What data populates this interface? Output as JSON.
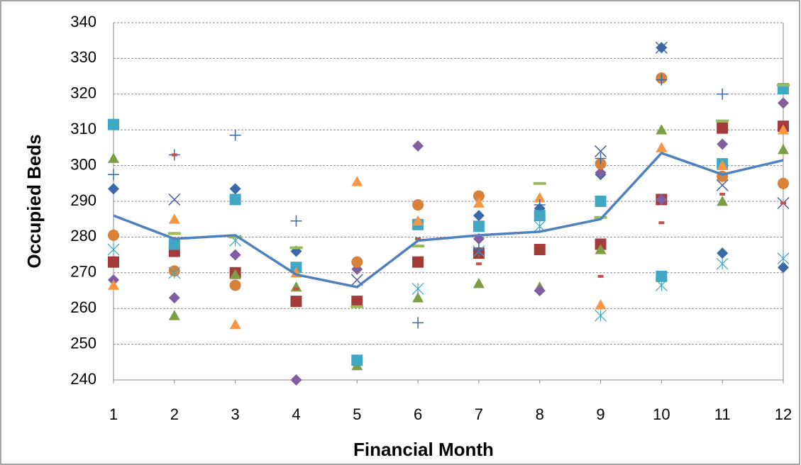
{
  "chart_data": {
    "type": "scatter",
    "x_label": "Financial Month",
    "y_label": "Occupied Beds",
    "x": [
      1,
      2,
      3,
      4,
      5,
      6,
      7,
      8,
      9,
      10,
      11,
      12
    ],
    "xlim": [
      1,
      12
    ],
    "xticks": [
      1,
      2,
      3,
      4,
      5,
      6,
      7,
      8,
      9,
      10,
      11,
      12
    ],
    "ylim": [
      240,
      340
    ],
    "yticks": [
      240,
      250,
      260,
      270,
      280,
      290,
      300,
      310,
      320,
      330,
      340
    ],
    "grid": true,
    "series": [
      {
        "marker": "diamond",
        "color": "#3a6aa8",
        "values": [
          293.5,
          null,
          293.5,
          276,
          null,
          null,
          286,
          288,
          297.5,
          333,
          275.5,
          271.5
        ]
      },
      {
        "marker": "square",
        "color": "#a33b3b",
        "values": [
          273,
          276,
          270,
          262,
          262,
          273,
          275.5,
          276.5,
          278,
          290.5,
          310.5,
          311
        ]
      },
      {
        "marker": "triangle",
        "color": "#7e9e43",
        "values": [
          302,
          258,
          269.5,
          266,
          244,
          263,
          267,
          266,
          276.5,
          310,
          290,
          304.5
        ]
      },
      {
        "marker": "diamond",
        "color": "#7f5fa0",
        "values": [
          268,
          263,
          275,
          240,
          271,
          305.5,
          279.5,
          265,
          298,
          290.5,
          306,
          317.5
        ]
      },
      {
        "marker": "square",
        "color": "#3fa6c4",
        "values": [
          311.5,
          278,
          290.5,
          271.5,
          245.5,
          283.5,
          283,
          286,
          290,
          269,
          300.5,
          321.5
        ]
      },
      {
        "marker": "circle",
        "color": "#d8813a",
        "values": [
          280.5,
          270.5,
          266.5,
          null,
          273,
          289,
          291.5,
          null,
          300.5,
          324.5,
          297,
          295
        ]
      },
      {
        "marker": "triangle",
        "color": "#f79646",
        "values": [
          266.5,
          285,
          255.5,
          270,
          295.5,
          284.5,
          289.5,
          291,
          261,
          305,
          300,
          310
        ]
      },
      {
        "marker": "x",
        "color": "#4a5fa0",
        "values": [
          null,
          290.5,
          null,
          null,
          268,
          null,
          null,
          null,
          304,
          333,
          294.5,
          289.5
        ]
      },
      {
        "marker": "asterisk",
        "color": "#3fa6c4",
        "values": [
          276.5,
          270,
          279,
          null,
          null,
          265.5,
          276,
          283,
          258,
          266.5,
          272.5,
          274
        ]
      },
      {
        "marker": "plus",
        "color": "#3a6aa8",
        "values": [
          297.5,
          303,
          308.5,
          284.5,
          null,
          256,
          276.5,
          289,
          302,
          324,
          320,
          null
        ]
      },
      {
        "marker": "dash",
        "color": "#c0504d",
        "values": [
          null,
          303,
          null,
          265.5,
          null,
          279.5,
          272.5,
          null,
          269,
          284,
          292,
          289.5
        ]
      },
      {
        "marker": "longdash",
        "color": "#9bbb59",
        "values": [
          null,
          281,
          280,
          277,
          260.5,
          277.5,
          null,
          295,
          285.5,
          null,
          312.5,
          322.5
        ]
      },
      {
        "marker": "line",
        "color": "#4f81bd",
        "values": [
          286,
          279.5,
          280.5,
          269.5,
          266,
          279,
          280.5,
          281.5,
          285,
          303.5,
          297.5,
          301.5
        ]
      }
    ]
  }
}
